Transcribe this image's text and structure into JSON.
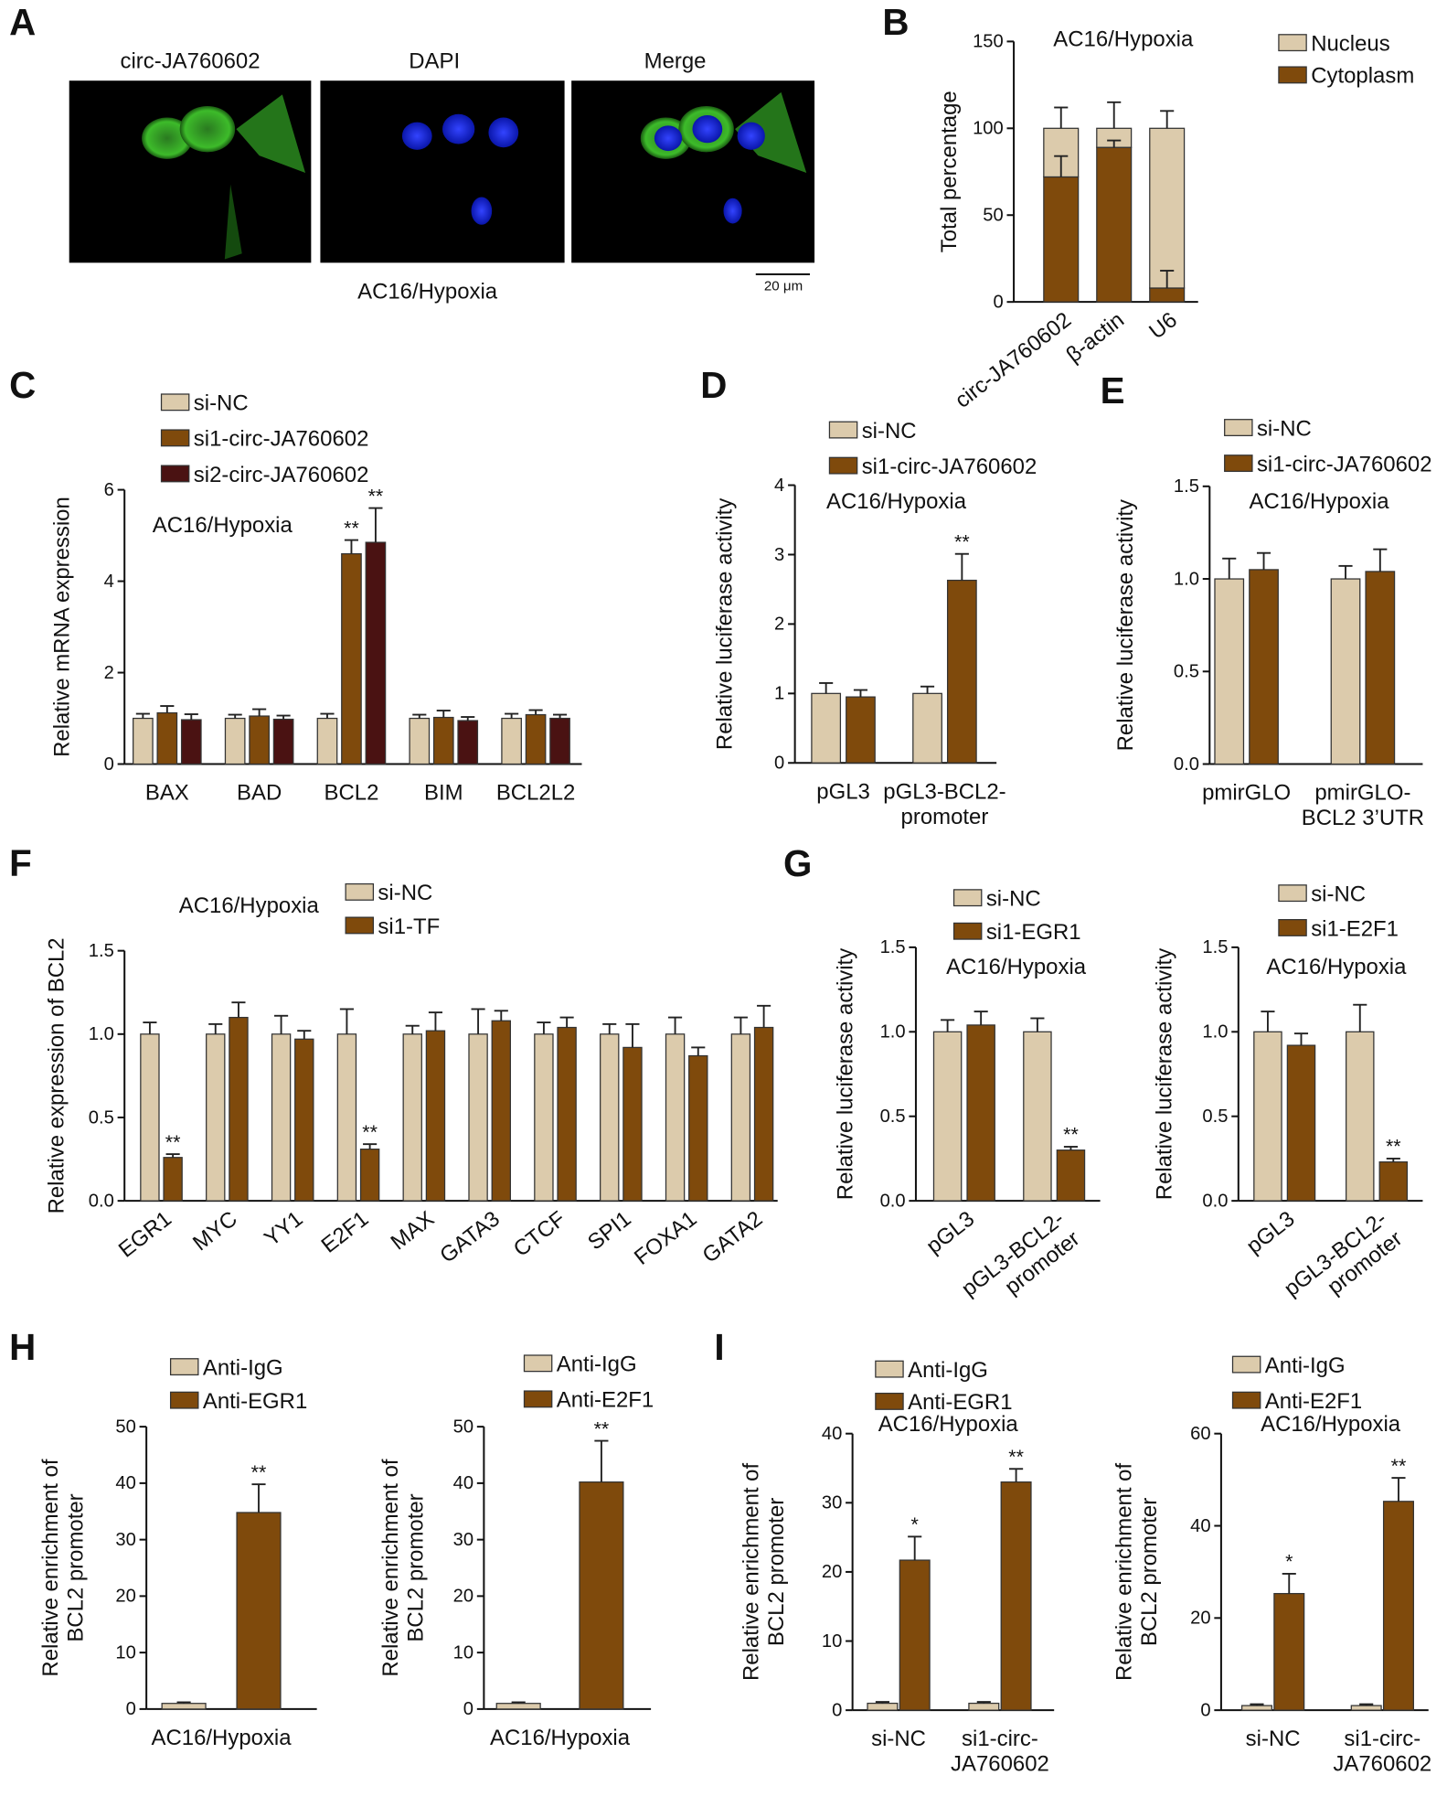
{
  "panel_labels": [
    "A",
    "B",
    "C",
    "D",
    "E",
    "F",
    "G",
    "H",
    "I"
  ],
  "panel_a": {
    "images": [
      "circ-JA760602",
      "DAPI",
      "Merge"
    ],
    "caption": "AC16/Hypoxia",
    "scale_bar": "20 μm"
  },
  "chart_data": [
    {
      "type": "stacked_bar",
      "title": "AC16/Hypoxia",
      "ylabel": "Total percentage",
      "categories": [
        "circ-JA760602",
        "β-actin",
        "U6"
      ],
      "series": [
        {
          "name": "Cytoplasm",
          "color": "#7f4a0c",
          "values": [
            72,
            89,
            8
          ],
          "errors": [
            12,
            4,
            10
          ]
        },
        {
          "name": "Nucleus",
          "color": "#dccbac",
          "values": [
            28,
            11,
            92
          ],
          "errors": [
            12,
            15,
            10
          ]
        }
      ],
      "ylim": [
        0,
        150
      ],
      "yticks": [
        0,
        50,
        100,
        150
      ]
    },
    {
      "type": "bar",
      "title": "AC16/Hypoxia",
      "ylabel": "Relative mRNA expression",
      "categories": [
        "BAX",
        "BAD",
        "BCL2",
        "BIM",
        "BCL2L2"
      ],
      "series": [
        {
          "name": "si-NC",
          "color": "#dccbac",
          "values": [
            1,
            1,
            1,
            1,
            1
          ],
          "errors": [
            0.1,
            0.08,
            0.1,
            0.08,
            0.1
          ],
          "annotations": [
            null,
            null,
            null,
            null,
            null
          ]
        },
        {
          "name": "si1-circ-JA760602",
          "color": "#7f4a0c",
          "values": [
            1.12,
            1.05,
            4.6,
            1.02,
            1.08
          ],
          "errors": [
            0.15,
            0.15,
            0.3,
            0.15,
            0.1
          ],
          "annotations": [
            null,
            null,
            "**",
            null,
            null
          ]
        },
        {
          "name": "si2-circ-JA760602",
          "color": "#4a1212",
          "values": [
            0.97,
            0.98,
            4.85,
            0.95,
            1.0
          ],
          "errors": [
            0.12,
            0.08,
            0.75,
            0.08,
            0.08
          ],
          "annotations": [
            null,
            null,
            "**",
            null,
            null
          ]
        }
      ],
      "ylim": [
        0,
        6
      ],
      "yticks": [
        0,
        2,
        4,
        6
      ]
    },
    {
      "type": "bar",
      "title": "AC16/Hypoxia",
      "ylabel": "Relative luciferase activity",
      "categories": [
        "pGL3",
        "pGL3-BCL2-\npromoter"
      ],
      "series": [
        {
          "name": "si-NC",
          "color": "#dccbac",
          "values": [
            1,
            1
          ],
          "errors": [
            0.15,
            0.1
          ],
          "annotations": [
            null,
            null
          ]
        },
        {
          "name": "si1-circ-JA760602",
          "color": "#7f4a0c",
          "values": [
            0.95,
            2.63
          ],
          "errors": [
            0.1,
            0.38
          ],
          "annotations": [
            null,
            "**"
          ]
        }
      ],
      "ylim": [
        0,
        4
      ],
      "yticks": [
        0,
        1,
        2,
        3,
        4
      ]
    },
    {
      "type": "bar",
      "title": "AC16/Hypoxia",
      "ylabel": "Relative luciferase activity",
      "categories": [
        "pmirGLO",
        "pmirGLO-\nBCL2 3’UTR"
      ],
      "series": [
        {
          "name": "si-NC",
          "color": "#dccbac",
          "values": [
            1,
            1
          ],
          "errors": [
            0.11,
            0.07
          ],
          "annotations": [
            null,
            null
          ]
        },
        {
          "name": "si1-circ-JA760602",
          "color": "#7f4a0c",
          "values": [
            1.05,
            1.04
          ],
          "errors": [
            0.09,
            0.12
          ],
          "annotations": [
            null,
            null
          ]
        }
      ],
      "ylim": [
        0,
        1.5
      ],
      "yticks": [
        {
          "value": 0,
          "label": "0.0"
        },
        {
          "value": 0.5,
          "label": "0.5"
        },
        {
          "value": 1,
          "label": "1.0"
        },
        {
          "value": 1.5,
          "label": "1.5"
        }
      ]
    },
    {
      "type": "bar",
      "title": "AC16/Hypoxia",
      "ylabel": "Relative expression of BCL2",
      "categories": [
        "EGR1",
        "MYC",
        "YY1",
        "E2F1",
        "MAX",
        "GATA3",
        "CTCF",
        "SPI1",
        "FOXA1",
        "GATA2"
      ],
      "series": [
        {
          "name": "si-NC",
          "color": "#dccbac",
          "values": [
            1,
            1,
            1,
            1,
            1,
            1,
            1,
            1,
            1,
            1
          ],
          "errors": [
            0.07,
            0.06,
            0.11,
            0.15,
            0.05,
            0.15,
            0.07,
            0.06,
            0.1,
            0.1
          ],
          "annotations": [
            null,
            null,
            null,
            null,
            null,
            null,
            null,
            null,
            null,
            null
          ]
        },
        {
          "name": "si1-TF",
          "color": "#7f4a0c",
          "values": [
            0.26,
            1.1,
            0.97,
            0.31,
            1.02,
            1.08,
            1.04,
            0.92,
            0.87,
            1.04
          ],
          "errors": [
            0.02,
            0.09,
            0.05,
            0.03,
            0.11,
            0.06,
            0.06,
            0.14,
            0.05,
            0.13
          ],
          "annotations": [
            "**",
            null,
            null,
            "**",
            null,
            null,
            null,
            null,
            null,
            null
          ]
        }
      ],
      "ylim": [
        0,
        1.5
      ],
      "yticks": [
        {
          "value": 0,
          "label": "0.0"
        },
        {
          "value": 0.5,
          "label": "0.5"
        },
        {
          "value": 1,
          "label": "1.0"
        },
        {
          "value": 1.5,
          "label": "1.5"
        }
      ]
    },
    {
      "type": "bar",
      "title": "AC16/Hypoxia",
      "ylabel": "Relative luciferase activity",
      "categories": [
        "pGL3",
        "pGL3-BCL2-\npromoter"
      ],
      "series": [
        {
          "name": "si-NC",
          "color": "#dccbac",
          "values": [
            1,
            1
          ],
          "errors": [
            0.07,
            0.08
          ],
          "annotations": [
            null,
            null
          ]
        },
        {
          "name": "si1-EGR1",
          "color": "#7f4a0c",
          "values": [
            1.04,
            0.3
          ],
          "errors": [
            0.08,
            0.02
          ],
          "annotations": [
            null,
            "**"
          ]
        }
      ],
      "ylim": [
        0,
        1.5
      ],
      "yticks": [
        {
          "value": 0,
          "label": "0.0"
        },
        {
          "value": 0.5,
          "label": "0.5"
        },
        {
          "value": 1,
          "label": "1.0"
        },
        {
          "value": 1.5,
          "label": "1.5"
        }
      ]
    },
    {
      "type": "bar",
      "title": "AC16/Hypoxia",
      "ylabel": "Relative luciferase activity",
      "categories": [
        "pGL3",
        "pGL3-BCL2-\npromoter"
      ],
      "series": [
        {
          "name": "si-NC",
          "color": "#dccbac",
          "values": [
            1,
            1
          ],
          "errors": [
            0.12,
            0.16
          ],
          "annotations": [
            null,
            null
          ]
        },
        {
          "name": "si1-E2F1",
          "color": "#7f4a0c",
          "values": [
            0.92,
            0.23
          ],
          "errors": [
            0.07,
            0.02
          ],
          "annotations": [
            null,
            "**"
          ]
        }
      ],
      "ylim": [
        0,
        1.5
      ],
      "yticks": [
        {
          "value": 0,
          "label": "0.0"
        },
        {
          "value": 0.5,
          "label": "0.5"
        },
        {
          "value": 1,
          "label": "1.0"
        },
        {
          "value": 1.5,
          "label": "1.5"
        }
      ]
    },
    {
      "type": "bar",
      "ylabel": "Relative enrichment of\nBCL2 promoter",
      "categories": [
        "AC16/Hypoxia"
      ],
      "series": [
        {
          "name": "Anti-IgG",
          "color": "#dccbac",
          "values": [
            1
          ],
          "errors": [
            0.2
          ],
          "annotations": [
            null
          ]
        },
        {
          "name": "Anti-EGR1",
          "color": "#7f4a0c",
          "values": [
            34.8
          ],
          "errors": [
            5
          ],
          "annotations": [
            "**"
          ]
        }
      ],
      "ylim": [
        0,
        50
      ],
      "yticks": [
        0,
        10,
        20,
        30,
        40,
        50
      ]
    },
    {
      "type": "bar",
      "ylabel": "Relative enrichment of\nBCL2 promoter",
      "categories": [
        "AC16/Hypoxia"
      ],
      "series": [
        {
          "name": "Anti-IgG",
          "color": "#dccbac",
          "values": [
            1
          ],
          "errors": [
            0.2
          ],
          "annotations": [
            null
          ]
        },
        {
          "name": "Anti-E2F1",
          "color": "#7f4a0c",
          "values": [
            40.2
          ],
          "errors": [
            7.3
          ],
          "annotations": [
            "**"
          ]
        }
      ],
      "ylim": [
        0,
        50
      ],
      "yticks": [
        0,
        10,
        20,
        30,
        40,
        50
      ]
    },
    {
      "type": "bar",
      "title": "AC16/Hypoxia",
      "ylabel": "Relative enrichment of\nBCL2 promoter",
      "categories": [
        "si-NC",
        "si1-circ-\nJA760602"
      ],
      "series": [
        {
          "name": "Anti-IgG",
          "color": "#dccbac",
          "values": [
            1,
            1
          ],
          "errors": [
            0.2,
            0.2
          ],
          "annotations": [
            null,
            null
          ]
        },
        {
          "name": "Anti-EGR1",
          "color": "#7f4a0c",
          "values": [
            21.7,
            33
          ],
          "errors": [
            3.4,
            1.9
          ],
          "annotations": [
            "*",
            "**"
          ]
        }
      ],
      "ylim": [
        0,
        40
      ],
      "yticks": [
        0,
        10,
        20,
        30,
        40
      ]
    },
    {
      "type": "bar",
      "title": "AC16/Hypoxia",
      "ylabel": "Relative enrichment of\nBCL2 promoter",
      "categories": [
        "si-NC",
        "si1-circ-\nJA760602"
      ],
      "series": [
        {
          "name": "Anti-IgG",
          "color": "#dccbac",
          "values": [
            1,
            1
          ],
          "errors": [
            0.3,
            0.3
          ],
          "annotations": [
            null,
            null
          ]
        },
        {
          "name": "Anti-E2F1",
          "color": "#7f4a0c",
          "values": [
            25.3,
            45.3
          ],
          "errors": [
            4.3,
            5.1
          ],
          "annotations": [
            "*",
            "**"
          ]
        }
      ],
      "ylim": [
        0,
        60
      ],
      "yticks": [
        0,
        20,
        40,
        60
      ]
    }
  ]
}
